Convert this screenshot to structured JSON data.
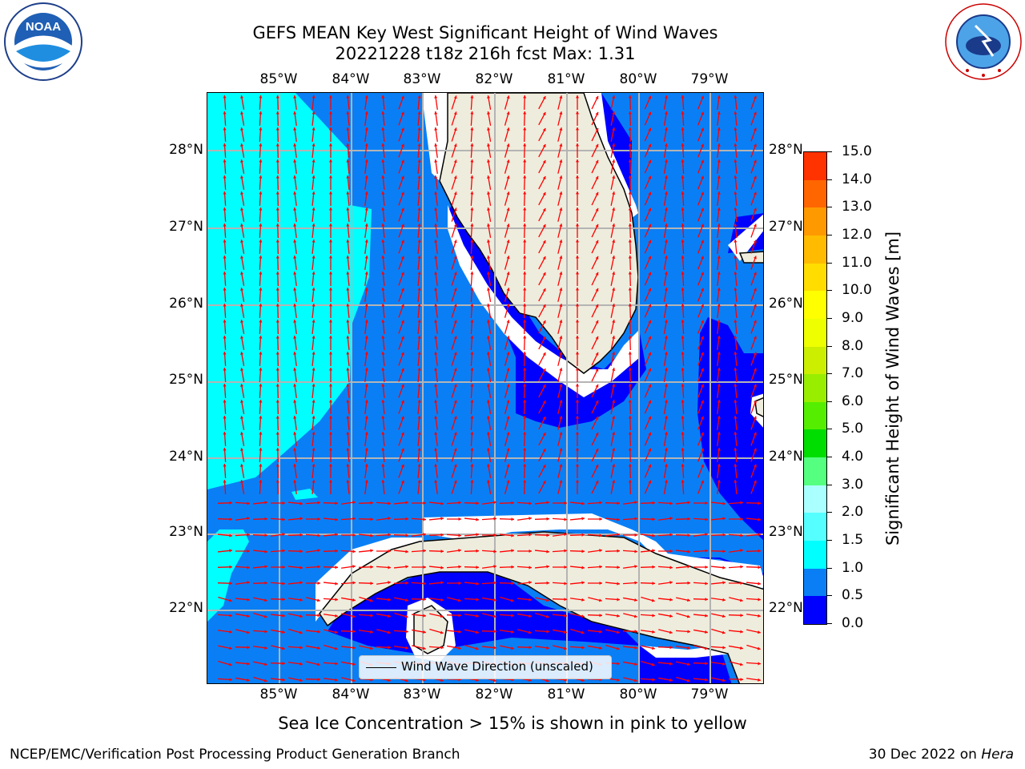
{
  "title": {
    "line1": "GEFS MEAN Key West Significant Height of Wind Waves",
    "line2": "20221228 t18z 216h fcst   Max: 1.31"
  },
  "logos": {
    "left": "NOAA",
    "right": "NATIONAL WEATHER SERVICE"
  },
  "map": {
    "lon_labels": [
      "85°W",
      "84°W",
      "83°W",
      "82°W",
      "81°W",
      "80°W",
      "79°W"
    ],
    "lat_labels": [
      "28°N",
      "27°N",
      "26°N",
      "25°N",
      "24°N",
      "23°N",
      "22°N"
    ],
    "legend_label": "Wind Wave Direction (unscaled)",
    "colors": {
      "land": "#eeecdc",
      "band_0_0_5": "#0000ff",
      "band_0_5_1_0": "#0a7ff5",
      "band_1_0_1_5": "#00ffff",
      "arrow": "#ff0000",
      "grid": "#b4b4b4"
    }
  },
  "colorbar": {
    "title": "Significant Height of Wind Waves [m]",
    "ticks": [
      "0.0",
      "0.5",
      "1.0",
      "1.5",
      "2.0",
      "3.0",
      "4.0",
      "5.0",
      "6.0",
      "7.0",
      "8.0",
      "9.0",
      "10.0",
      "11.0",
      "12.0",
      "13.0",
      "14.0",
      "15.0"
    ],
    "colors": [
      "#0000ff",
      "#0a7ff5",
      "#00ffff",
      "#55ffff",
      "#aaffff",
      "#55ff80",
      "#00dd00",
      "#55ee00",
      "#99ee00",
      "#ccee00",
      "#eeff00",
      "#ffff00",
      "#ffdd00",
      "#ffbb00",
      "#ff9900",
      "#ff6600",
      "#ff3300"
    ]
  },
  "subtitle": "Sea Ice Concentration > 15% is shown in pink to yellow",
  "footer": {
    "left": "NCEP/EMC/Verification Post Processing Product Generation Branch",
    "right_date": "30 Dec 2022 on ",
    "right_host": "Hera"
  }
}
